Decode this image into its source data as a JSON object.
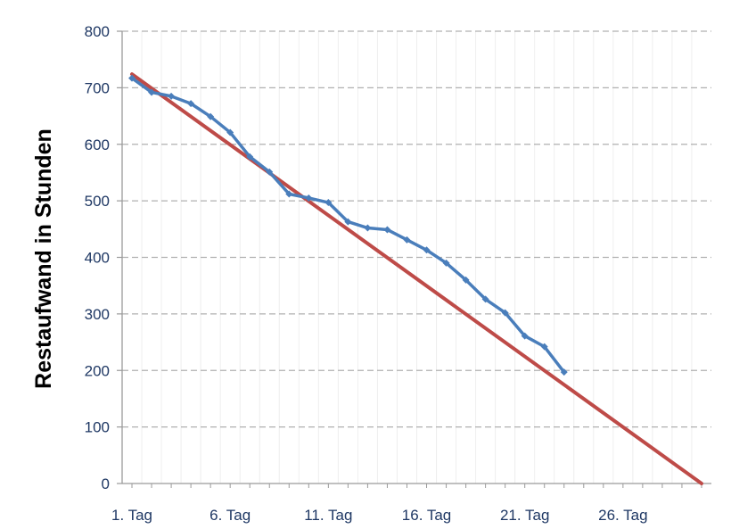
{
  "chart_data": {
    "type": "line",
    "title": "",
    "xlabel": "",
    "ylabel": "Restaufwand in Stunden",
    "x_tick_labels": [
      "1. Tag",
      "6. Tag",
      "11. Tag",
      "16. Tag",
      "21. Tag",
      "26. Tag"
    ],
    "x_tick_positions": [
      1,
      6,
      11,
      16,
      21,
      26
    ],
    "xlim": [
      0.5,
      30.5
    ],
    "ylim": [
      0,
      800
    ],
    "y_ticks": [
      0,
      100,
      200,
      300,
      400,
      500,
      600,
      700,
      800
    ],
    "grid": {
      "horizontal": "dashed",
      "vertical": "light"
    },
    "legend": "none",
    "colors": {
      "text": "#1f3864",
      "series_actual": "#4a7ebb",
      "series_ideal": "#be4b48",
      "grid_h": "#b0b0b0",
      "grid_v": "#eeeeee",
      "axis": "#9a9a9a"
    },
    "series": [
      {
        "x": [
          1,
          2,
          3,
          4,
          5,
          6,
          7,
          8,
          9,
          10,
          11,
          12,
          13,
          14,
          15,
          16,
          17,
          18,
          19,
          20,
          21,
          22,
          23
        ],
        "values": [
          717,
          692,
          685,
          672,
          649,
          621,
          578,
          551,
          512,
          505,
          497,
          463,
          452,
          449,
          431,
          413,
          390,
          360,
          326,
          302,
          261,
          242,
          197
        ]
      },
      {
        "x": [
          1,
          30
        ],
        "values": [
          724,
          0
        ]
      }
    ]
  }
}
